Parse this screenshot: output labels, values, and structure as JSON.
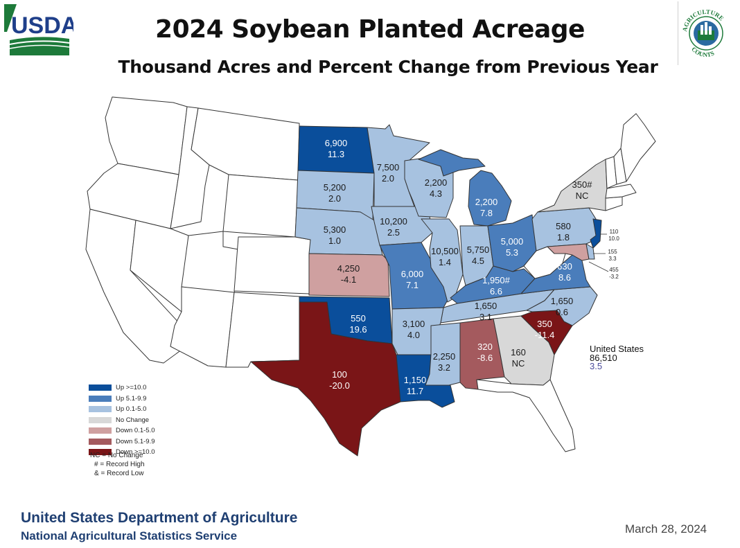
{
  "header": {
    "title": "2024 Soybean Planted Acreage",
    "subtitle": "Thousand Acres and Percent Change from Previous Year"
  },
  "logos": {
    "usda": "USDA",
    "agriculture_counts": "AGRICULTURE COUNTS"
  },
  "colors": {
    "up_10_plus": "#0a4e9b",
    "up_5_1_to_9_9": "#4a7dbb",
    "up_0_1_to_5_0": "#a7c2e0",
    "no_change": "#d8d8d8",
    "down_0_1_to_5_0": "#cfa0a0",
    "down_5_1_to_9_9": "#a45a5e",
    "down_10_plus": "#7a1517",
    "no_data": "#ffffff"
  },
  "legend": [
    {
      "label": "Up >=10.0",
      "color": "#0a4e9b"
    },
    {
      "label": "Up 5.1-9.9",
      "color": "#4a7dbb"
    },
    {
      "label": "Up 0.1-5.0",
      "color": "#a7c2e0"
    },
    {
      "label": "No Change",
      "color": "#d8d8d8"
    },
    {
      "label": "Down 0.1-5.0",
      "color": "#cfa0a0"
    },
    {
      "label": "Down 5.1-9.9",
      "color": "#a45a5e"
    },
    {
      "label": "Down >=10.0",
      "color": "#7a1517"
    }
  ],
  "notes": [
    "NC = No Change",
    "# = Record High",
    "& = Record Low"
  ],
  "us_total": {
    "label": "United States",
    "value": "86,510",
    "change": "3.5"
  },
  "states": [
    {
      "id": "ND",
      "acres": "6,900",
      "change": "11.3",
      "category": "up_10_plus"
    },
    {
      "id": "SD",
      "acres": "5,200",
      "change": "2.0",
      "category": "up_0_1_to_5_0"
    },
    {
      "id": "NE",
      "acres": "5,300",
      "change": "1.0",
      "category": "up_0_1_to_5_0"
    },
    {
      "id": "KS",
      "acres": "4,250",
      "change": "-4.1",
      "category": "down_0_1_to_5_0"
    },
    {
      "id": "OK",
      "acres": "550",
      "change": "19.6",
      "category": "up_10_plus"
    },
    {
      "id": "TX",
      "acres": "100",
      "change": "-20.0",
      "category": "down_10_plus"
    },
    {
      "id": "MN",
      "acres": "7,500",
      "change": "2.0",
      "category": "up_0_1_to_5_0"
    },
    {
      "id": "IA",
      "acres": "10,200",
      "change": "2.5",
      "category": "up_0_1_to_5_0"
    },
    {
      "id": "MO",
      "acres": "6,000",
      "change": "7.1",
      "category": "up_5_1_to_9_9"
    },
    {
      "id": "AR",
      "acres": "3,100",
      "change": "4.0",
      "category": "up_0_1_to_5_0"
    },
    {
      "id": "LA",
      "acres": "1,150",
      "change": "11.7",
      "category": "up_10_plus"
    },
    {
      "id": "WI",
      "acres": "2,200",
      "change": "4.3",
      "category": "up_0_1_to_5_0"
    },
    {
      "id": "IL",
      "acres": "10,500",
      "change": "1.4",
      "category": "up_0_1_to_5_0"
    },
    {
      "id": "MI",
      "acres": "2,200",
      "change": "7.8",
      "category": "up_5_1_to_9_9"
    },
    {
      "id": "IN",
      "acres": "5,750",
      "change": "4.5",
      "category": "up_0_1_to_5_0"
    },
    {
      "id": "OH",
      "acres": "5,000",
      "change": "5.3",
      "category": "up_5_1_to_9_9"
    },
    {
      "id": "KY",
      "acres": "1,950#",
      "change": "6.6",
      "category": "up_5_1_to_9_9"
    },
    {
      "id": "TN",
      "acres": "1,650",
      "change": "3.1",
      "category": "up_0_1_to_5_0"
    },
    {
      "id": "MS",
      "acres": "2,250",
      "change": "3.2",
      "category": "up_0_1_to_5_0"
    },
    {
      "id": "AL",
      "acres": "320",
      "change": "-8.6",
      "category": "down_5_1_to_9_9"
    },
    {
      "id": "GA",
      "acres": "160",
      "change": "NC",
      "category": "no_change"
    },
    {
      "id": "SC",
      "acres": "350",
      "change": "-11.4",
      "category": "down_10_plus"
    },
    {
      "id": "NC",
      "acres": "1,650",
      "change": "0.6",
      "category": "up_0_1_to_5_0"
    },
    {
      "id": "VA",
      "acres": "630",
      "change": "8.6",
      "category": "up_5_1_to_9_9"
    },
    {
      "id": "PA",
      "acres": "580",
      "change": "1.8",
      "category": "up_0_1_to_5_0"
    },
    {
      "id": "NY",
      "acres": "350#",
      "change": "NC",
      "category": "no_change"
    },
    {
      "id": "NJ",
      "acres": "110",
      "change": "10.0",
      "category": "up_10_plus"
    },
    {
      "id": "MD",
      "acres": "455",
      "change": "-3.2",
      "category": "down_0_1_to_5_0"
    },
    {
      "id": "DE",
      "acres": "155",
      "change": "3.3",
      "category": "up_0_1_to_5_0"
    }
  ],
  "footer": {
    "department": "United States Department of Agriculture",
    "service": "National Agricultural Statistics Service",
    "date": "March 28, 2024"
  }
}
